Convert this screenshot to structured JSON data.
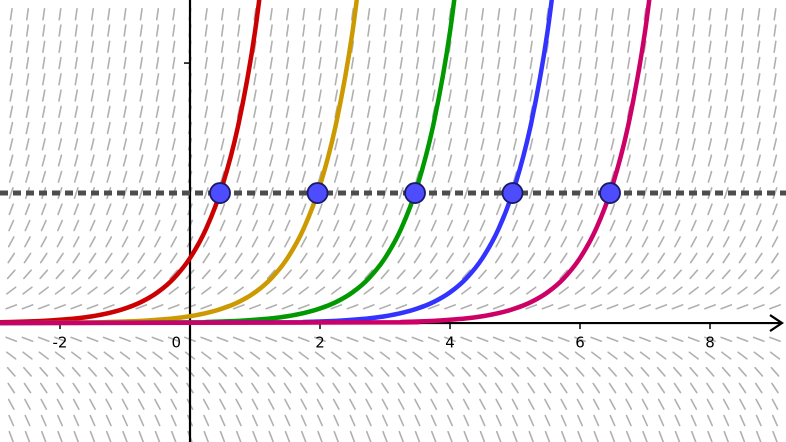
{
  "chart_data": {
    "type": "line",
    "xlim": [
      -2.923,
      9.169
    ],
    "ylim": [
      -1.83,
      4.97
    ],
    "xticks": [
      -2,
      0,
      2,
      4,
      6,
      8
    ],
    "yticks": [
      2,
      4
    ],
    "hline": 2,
    "hline_color": "#4d4d4d",
    "slope_field": true,
    "series": [
      {
        "color": "#cc0000",
        "x": [
          -3,
          -2.75,
          -2.5,
          -2.25,
          -2,
          -1.75,
          -1.5,
          -1.25,
          -1,
          -0.75,
          -0.5,
          -0.25,
          0,
          0.25,
          0.5,
          0.75,
          1,
          1.25
        ],
        "values": [
          0.011,
          0.016,
          0.024,
          0.034,
          0.05,
          0.072,
          0.105,
          0.153,
          0.223,
          0.325,
          0.472,
          0.687,
          1,
          1.455,
          2.117,
          3.08,
          4.482,
          6.521
        ]
      },
      {
        "color": "#cc9900",
        "x": [
          -3,
          -1.5,
          -1.25,
          -1,
          -0.75,
          -0.5,
          -0.25,
          0,
          0.25,
          0.5,
          0.75,
          1,
          1.25,
          1.5,
          1.75,
          2,
          2.25,
          2.5,
          2.75
        ],
        "values": [
          0.001,
          0.011,
          0.016,
          0.024,
          0.034,
          0.05,
          0.072,
          0.105,
          0.153,
          0.223,
          0.325,
          0.472,
          0.687,
          1,
          1.455,
          2.117,
          3.08,
          4.482,
          6.521
        ]
      },
      {
        "color": "#009900",
        "x": [
          -3,
          0,
          0.25,
          0.5,
          0.75,
          1,
          1.25,
          1.5,
          1.75,
          2,
          2.25,
          2.5,
          2.75,
          3,
          3.25,
          3.5,
          3.75,
          4,
          4.25
        ],
        "values": [
          0,
          0.011,
          0.016,
          0.024,
          0.034,
          0.05,
          0.072,
          0.105,
          0.153,
          0.223,
          0.325,
          0.472,
          0.687,
          1,
          1.455,
          2.117,
          3.08,
          4.482,
          6.521
        ]
      },
      {
        "color": "#3333ff",
        "x": [
          -3,
          1.5,
          1.75,
          2,
          2.25,
          2.5,
          2.75,
          3,
          3.25,
          3.5,
          3.75,
          4,
          4.25,
          4.5,
          4.75,
          5,
          5.25,
          5.5,
          5.75
        ],
        "values": [
          0,
          0.011,
          0.016,
          0.024,
          0.034,
          0.05,
          0.072,
          0.105,
          0.153,
          0.223,
          0.325,
          0.472,
          0.687,
          1,
          1.455,
          2.117,
          3.08,
          4.482,
          6.521
        ]
      },
      {
        "color": "#cc0066",
        "x": [
          -3,
          3,
          3.25,
          3.5,
          3.75,
          4,
          4.25,
          4.5,
          4.75,
          5,
          5.25,
          5.5,
          5.75,
          6,
          6.25,
          6.5,
          6.75,
          7,
          7.25
        ],
        "values": [
          0,
          0.011,
          0.016,
          0.024,
          0.034,
          0.05,
          0.072,
          0.105,
          0.153,
          0.223,
          0.325,
          0.472,
          0.687,
          1,
          1.455,
          2.117,
          3.08,
          4.482,
          6.521
        ]
      }
    ],
    "points": {
      "color": "#4d4dff",
      "x": [
        0.462,
        1.962,
        3.462,
        4.962,
        6.462
      ],
      "values": [
        2,
        2,
        2,
        2,
        2
      ]
    }
  }
}
